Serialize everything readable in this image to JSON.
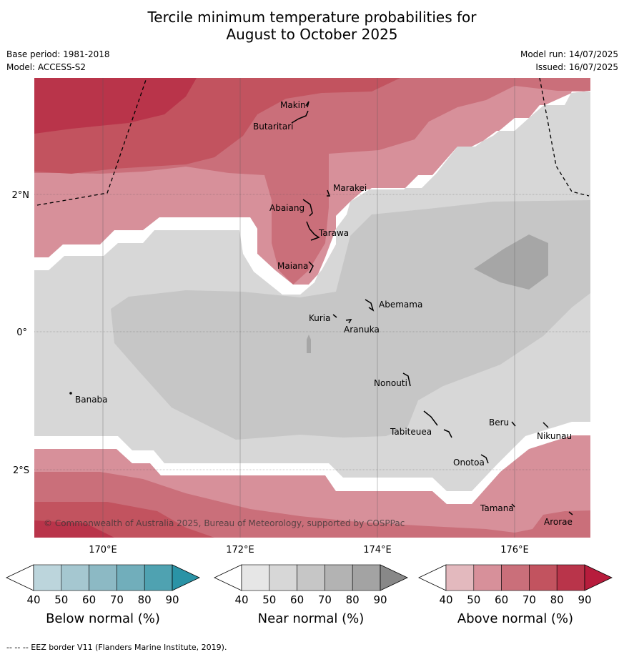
{
  "title_line1": "Tercile minimum temperature probabilities for",
  "title_line2": "August to October 2025",
  "base_period": "Base period: 1981-2018",
  "model": "Model: ACCESS-S2",
  "model_run": "Model run: 14/07/2025",
  "issued": "Issued: 16/07/2025",
  "copyright": "© Commonwealth of Australia 2025, Bureau of Meteorology, supported by COSPPac",
  "lat_labels": [
    "2°N",
    "0°",
    "2°S"
  ],
  "lon_labels": [
    "170°E",
    "172°E",
    "174°E",
    "176°E"
  ],
  "places": [
    "Makin",
    "Butaritari",
    "Marakei",
    "Abaiang",
    "Tarawa",
    "Maiana",
    "Abemama",
    "Kuria",
    "Aranuka",
    "Nonouti",
    "Banaba",
    "Beru",
    "Nikunau",
    "Tabiteuea",
    "Onotoa",
    "Tamana",
    "Arorae"
  ],
  "colorbars": [
    {
      "label": "Below normal (%)",
      "ticks": [
        "40",
        "50",
        "60",
        "70",
        "80",
        "90"
      ],
      "colors": [
        "#bcd5dc",
        "#a5c7d0",
        "#8cb9c4",
        "#71aebb",
        "#4fa2b1",
        "#2a93a6"
      ]
    },
    {
      "label": "Near normal (%)",
      "ticks": [
        "40",
        "50",
        "60",
        "70",
        "80",
        "90"
      ],
      "colors": [
        "#e6e6e6",
        "#d7d7d7",
        "#c6c6c6",
        "#b3b3b3",
        "#a3a3a3",
        "#888888"
      ]
    },
    {
      "label": "Above normal (%)",
      "ticks": [
        "40",
        "50",
        "60",
        "70",
        "80",
        "90"
      ],
      "colors": [
        "#e3b9be",
        "#d7909a",
        "#ca6f7a",
        "#c2535f",
        "#b9344a",
        "#b71c3c"
      ]
    }
  ],
  "footnote": "-- -- -- EEZ border V11 (Flanders Marine Institute, 2019)."
}
